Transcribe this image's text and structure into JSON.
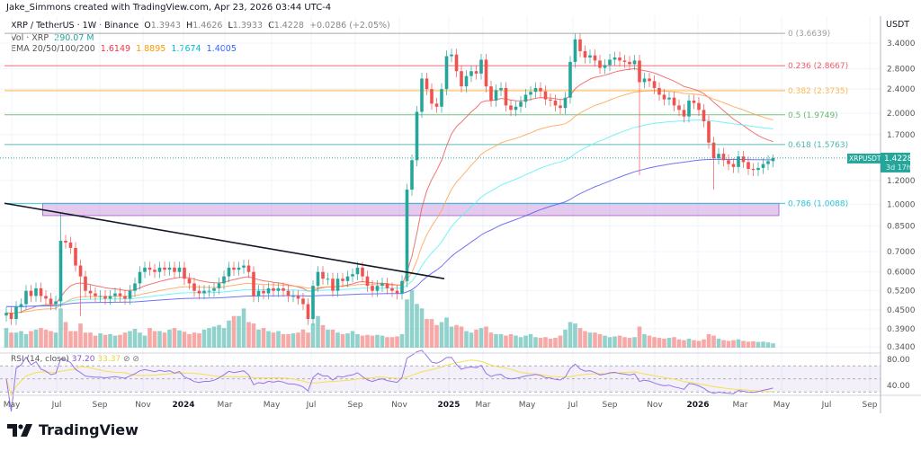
{
  "credit": "Jake_Simmons created with TradingView.com, Apr 23, 2026 03:44 UTC-4",
  "legend": {
    "symbol": "XRP / TetherUS · 1W · Binance",
    "o_label": "O",
    "o": "1.3943",
    "h_label": "H",
    "h": "1.4626",
    "l_label": "L",
    "l": "1.3933",
    "c_label": "C",
    "c": "1.4228",
    "change": "+0.0286 (+2.05%)",
    "vol_label": "Vol · XRP",
    "vol": "290.07 M",
    "ema_label": "EMA 20/50/100/200",
    "ema20": "1.6149",
    "ema50": "1.8895",
    "ema100": "1.7674",
    "ema200": "1.4005"
  },
  "colors": {
    "up": "#26a69a",
    "down": "#ef5350",
    "ema20": "#f05a5a",
    "ema50": "#ffa552",
    "ema100": "#5ef0f5",
    "ema200": "#5b5bf0",
    "rsi": "#9575e8",
    "rsi_ma": "#f5e050",
    "trendline": "#131722",
    "zone": "#c38ad8"
  },
  "price_axis": {
    "currency": "USDT",
    "scale": "log",
    "ticks": [
      "3.4000",
      "2.8000",
      "2.4000",
      "2.0000",
      "1.7000",
      "1.2000",
      "1.0000",
      "0.8500",
      "0.7000",
      "0.6000",
      "0.5200",
      "0.4500",
      "0.3900",
      "0.3400"
    ],
    "last_symbol": "XRPUSDT",
    "last_price": "1.4228",
    "countdown": "3d 17h"
  },
  "rsi": {
    "label": "RSI (14, close)",
    "value": "37.20",
    "ma_value": "33.37",
    "ticks": [
      "80.00",
      "40.00"
    ],
    "bands": [
      70,
      50,
      30
    ]
  },
  "time_axis": [
    {
      "label": "May",
      "bold": false
    },
    {
      "label": "Jul",
      "bold": false
    },
    {
      "label": "Sep",
      "bold": false
    },
    {
      "label": "Nov",
      "bold": false
    },
    {
      "label": "2024",
      "bold": true
    },
    {
      "label": "Mar",
      "bold": false
    },
    {
      "label": "May",
      "bold": false
    },
    {
      "label": "Jul",
      "bold": false
    },
    {
      "label": "Sep",
      "bold": false
    },
    {
      "label": "Nov",
      "bold": false
    },
    {
      "label": "2025",
      "bold": true
    },
    {
      "label": "Mar",
      "bold": false
    },
    {
      "label": "May",
      "bold": false
    },
    {
      "label": "Jul",
      "bold": false
    },
    {
      "label": "Sep",
      "bold": false
    },
    {
      "label": "Nov",
      "bold": false
    },
    {
      "label": "2026",
      "bold": true
    },
    {
      "label": "Mar",
      "bold": false
    },
    {
      "label": "May",
      "bold": false
    },
    {
      "label": "Jul",
      "bold": false
    },
    {
      "label": "Sep",
      "bold": false
    }
  ],
  "fib_levels": [
    {
      "label": "0 (3.6639)",
      "level": 0,
      "price": 3.6639,
      "color": "#9e9e9e"
    },
    {
      "label": "0.236 (2.8667)",
      "level": 0.236,
      "price": 2.8667,
      "color": "#f05a6a"
    },
    {
      "label": "0.382 (2.3735)",
      "level": 0.382,
      "price": 2.3735,
      "color": "#ffb74d"
    },
    {
      "label": "0.5 (1.9749)",
      "level": 0.5,
      "price": 1.9749,
      "color": "#66bb6a"
    },
    {
      "label": "0.618 (1.5763)",
      "level": 0.618,
      "price": 1.5763,
      "color": "#4db6ac"
    },
    {
      "label": "0.786 (1.0088)",
      "level": 0.786,
      "price": 1.0088,
      "color": "#26c6da"
    }
  ],
  "chart_data": {
    "type": "candlestick",
    "interval": "1W",
    "x_start": "2023-04-24",
    "x_end": "2026-04-20",
    "y_scale": "log",
    "ylim": [
      0.33,
      3.9
    ],
    "close": [
      0.44,
      0.42,
      0.46,
      0.47,
      0.52,
      0.5,
      0.53,
      0.5,
      0.49,
      0.47,
      0.48,
      0.76,
      0.75,
      0.72,
      0.63,
      0.58,
      0.52,
      0.51,
      0.5,
      0.5,
      0.49,
      0.5,
      0.51,
      0.5,
      0.49,
      0.52,
      0.55,
      0.6,
      0.62,
      0.61,
      0.6,
      0.62,
      0.61,
      0.62,
      0.6,
      0.62,
      0.57,
      0.55,
      0.52,
      0.51,
      0.52,
      0.52,
      0.53,
      0.55,
      0.58,
      0.62,
      0.61,
      0.62,
      0.63,
      0.6,
      0.5,
      0.52,
      0.51,
      0.53,
      0.52,
      0.53,
      0.52,
      0.5,
      0.5,
      0.49,
      0.47,
      0.42,
      0.54,
      0.6,
      0.57,
      0.57,
      0.52,
      0.57,
      0.56,
      0.58,
      0.59,
      0.62,
      0.58,
      0.54,
      0.52,
      0.54,
      0.55,
      0.53,
      0.52,
      0.51,
      0.56,
      1.12,
      1.4,
      2.02,
      2.6,
      2.4,
      2.15,
      2.1,
      2.4,
      3.08,
      3.12,
      2.75,
      2.45,
      2.65,
      2.75,
      2.7,
      3.0,
      2.45,
      2.2,
      2.38,
      2.42,
      2.12,
      2.05,
      2.1,
      2.18,
      2.3,
      2.35,
      2.42,
      2.36,
      2.22,
      2.2,
      2.12,
      2.08,
      2.25,
      2.95,
      3.5,
      3.2,
      3.05,
      3.1,
      2.98,
      2.82,
      2.88,
      3.0,
      3.05,
      2.98,
      2.95,
      2.9,
      2.98,
      2.53,
      2.6,
      2.55,
      2.42,
      2.3,
      2.22,
      2.25,
      2.12,
      2.05,
      1.95,
      2.2,
      2.16,
      2.05,
      1.88,
      1.6,
      1.42,
      1.47,
      1.4,
      1.36,
      1.33,
      1.44,
      1.38,
      1.31,
      1.3,
      1.32,
      1.36,
      1.39,
      1.4228
    ],
    "low_overrides": {
      "15": 0.43,
      "128": 1.25,
      "143": 1.12
    },
    "high_overrides": {
      "11": 0.94,
      "115": 3.66,
      "155": 1.4626
    },
    "volume_millions": [
      1300,
      1000,
      1000,
      1100,
      900,
      1100,
      1200,
      1300,
      1200,
      1100,
      1000,
      2600,
      1700,
      1100,
      1100,
      1600,
      1000,
      1000,
      800,
      950,
      850,
      900,
      800,
      850,
      1000,
      1100,
      1250,
      1000,
      800,
      1300,
      1100,
      1100,
      1000,
      1200,
      1300,
      1150,
      1050,
      900,
      1000,
      950,
      1200,
      1300,
      1400,
      1500,
      1300,
      1800,
      2100,
      2100,
      2600,
      1700,
      1600,
      1200,
      1300,
      1100,
      1000,
      1100,
      900,
      900,
      950,
      1000,
      1200,
      1000,
      1600,
      2100,
      1500,
      1200,
      1200,
      1000,
      900,
      950,
      1100,
      900,
      800,
      850,
      800,
      850,
      800,
      700,
      700,
      750,
      900,
      3200,
      3800,
      2900,
      2600,
      1900,
      1900,
      1500,
      1700,
      2000,
      1400,
      1500,
      1400,
      1100,
      1000,
      1200,
      1300,
      1400,
      1000,
      900,
      900,
      800,
      900,
      800,
      700,
      800,
      900,
      700,
      650,
      700,
      600,
      650,
      800,
      1200,
      1700,
      1600,
      1300,
      1100,
      1000,
      1000,
      900,
      800,
      700,
      750,
      800,
      700,
      650,
      700,
      1400,
      900,
      800,
      700,
      650,
      600,
      650,
      700,
      550,
      500,
      600,
      500,
      450,
      550,
      900,
      800,
      600,
      500,
      450,
      500,
      550,
      450,
      400,
      420,
      380,
      400,
      350,
      290
    ],
    "overlays": [
      "EMA 20",
      "EMA 50",
      "EMA 100",
      "EMA 200"
    ],
    "trendline": {
      "from": [
        "2023-04-24",
        1.01
      ],
      "to": [
        "2024-12-02",
        0.57
      ]
    },
    "zone": {
      "from_price": 1.0088,
      "to_price": 0.92,
      "start": "2023-07-10"
    }
  },
  "brand": "TradingView"
}
